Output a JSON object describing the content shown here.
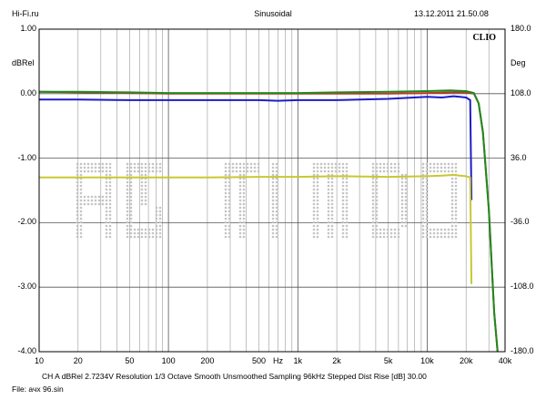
{
  "header": {
    "left": "Hi-Fi.ru",
    "center": "Sinusoidal",
    "right": "13.12.2011 21.50.08"
  },
  "chart_data": {
    "type": "line",
    "left_axis": {
      "unit": "dBRel",
      "range": [
        -4.0,
        1.0
      ],
      "ticks": [
        {
          "v": 1.0,
          "label": "1.00"
        },
        {
          "v": 0.0,
          "label": "0.00"
        },
        {
          "v": -1.0,
          "label": "-1.00"
        },
        {
          "v": -2.0,
          "label": "-2.00"
        },
        {
          "v": -3.0,
          "label": "-3.00"
        },
        {
          "v": -4.0,
          "label": "-4.00"
        }
      ]
    },
    "right_axis": {
      "unit": "Deg",
      "range": [
        -180.0,
        180.0
      ],
      "ticks": [
        {
          "v": 180.0,
          "label": "180.0"
        },
        {
          "v": 108.0,
          "label": "108.0"
        },
        {
          "v": 36.0,
          "label": "36.0"
        },
        {
          "v": -36.0,
          "label": "-36.0"
        },
        {
          "v": -108.0,
          "label": "-108.0"
        },
        {
          "v": -180.0,
          "label": "-180.0"
        }
      ]
    },
    "x_axis": {
      "scale": "log",
      "unit": "Hz",
      "range": [
        10,
        40000
      ],
      "ticks": [
        {
          "v": 10,
          "label": "10"
        },
        {
          "v": 20,
          "label": "20"
        },
        {
          "v": 50,
          "label": "50"
        },
        {
          "v": 100,
          "label": "100"
        },
        {
          "v": 200,
          "label": "200"
        },
        {
          "v": 500,
          "label": "500"
        },
        {
          "v": 1000,
          "label": "1k"
        },
        {
          "v": 2000,
          "label": "2k"
        },
        {
          "v": 5000,
          "label": "5k"
        },
        {
          "v": 10000,
          "label": "10k"
        },
        {
          "v": 20000,
          "label": "20k"
        },
        {
          "v": 40000,
          "label": "40k"
        }
      ]
    },
    "grid": true,
    "brand": "CLIO",
    "series": [
      {
        "color": "#c0392b",
        "x": [
          10,
          20,
          50,
          100,
          200,
          500,
          1000,
          2000,
          5000,
          10000,
          15000,
          20000,
          23000,
          25000,
          27000,
          30000,
          33000,
          35000
        ],
        "y": [
          0.03,
          0.02,
          0.01,
          0.0,
          0.0,
          0.0,
          0.0,
          0.0,
          0.0,
          0.01,
          0.02,
          0.02,
          0.0,
          -0.15,
          -0.6,
          -1.8,
          -3.4,
          -4.0
        ]
      },
      {
        "color": "#1e8a1e",
        "x": [
          10,
          20,
          50,
          100,
          200,
          500,
          1000,
          2000,
          5000,
          10000,
          15000,
          20000,
          23000,
          25000,
          27000,
          30000,
          33000,
          35000
        ],
        "y": [
          0.03,
          0.03,
          0.02,
          0.01,
          0.01,
          0.01,
          0.01,
          0.02,
          0.03,
          0.04,
          0.05,
          0.04,
          0.01,
          -0.15,
          -0.6,
          -1.8,
          -3.4,
          -4.0
        ]
      },
      {
        "color": "#1c1cc8",
        "x": [
          10,
          20,
          50,
          100,
          200,
          500,
          700,
          1000,
          2000,
          5000,
          10000,
          13000,
          16000,
          20000,
          21500,
          22000
        ],
        "y": [
          -0.09,
          -0.09,
          -0.1,
          -0.1,
          -0.1,
          -0.1,
          -0.11,
          -0.1,
          -0.1,
          -0.08,
          -0.05,
          -0.06,
          -0.04,
          -0.06,
          -0.1,
          -1.65
        ]
      },
      {
        "color": "#c8c832",
        "x": [
          10,
          20,
          50,
          100,
          200,
          500,
          1000,
          2000,
          5000,
          10000,
          13000,
          16000,
          20000,
          21500,
          22000
        ],
        "y": [
          -1.3,
          -1.3,
          -1.3,
          -1.3,
          -1.3,
          -1.29,
          -1.29,
          -1.28,
          -1.29,
          -1.28,
          -1.27,
          -1.26,
          -1.28,
          -1.3,
          -2.95
        ]
      }
    ]
  },
  "footer": {
    "line1": "CH A   dBRel 2.7234V   Resolution 1/3 Octave   Smooth Unsmoothed   Sampling 96kHz   Stepped   Dist Rise [dB] 30.00",
    "line2": "File: ачх 96.sin"
  }
}
